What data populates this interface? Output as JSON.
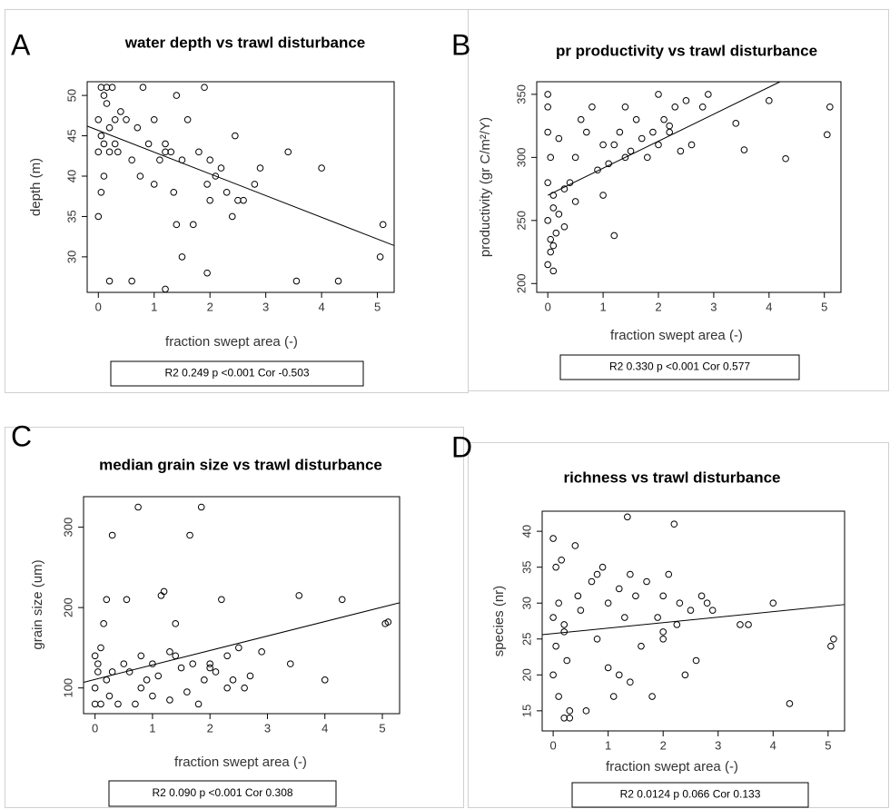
{
  "chart_data": [
    {
      "type": "scatter",
      "panel_label": "A",
      "title": "water depth vs trawl disturbance",
      "xlabel": "fraction swept area (-)",
      "ylabel": "depth (m)",
      "x": [
        0,
        0,
        0,
        0.05,
        0.05,
        0.1,
        0.1,
        0.1,
        0.15,
        0.2,
        0.2,
        0.25,
        0.3,
        0.35,
        0.4,
        0.5,
        0.6,
        0.7,
        0.75,
        0.8,
        0.9,
        1.0,
        1.0,
        1.1,
        1.2,
        1.2,
        1.3,
        1.35,
        1.4,
        1.4,
        1.5,
        1.5,
        1.6,
        1.7,
        1.8,
        1.9,
        1.95,
        2.0,
        2.0,
        2.1,
        2.2,
        2.3,
        2.4,
        2.45,
        2.5,
        2.6,
        2.8,
        2.9,
        3.4,
        4.0,
        5.05,
        5.1,
        0.2,
        0.6,
        1.2,
        1.95,
        3.55,
        4.3,
        0.05,
        0.15,
        0.3
      ],
      "y": [
        35,
        43,
        47,
        51,
        45,
        50,
        44,
        40,
        51,
        46,
        43,
        51,
        47,
        43,
        48,
        47,
        42,
        46,
        40,
        51,
        44,
        47,
        39,
        42,
        26,
        44,
        43,
        38,
        50,
        34,
        42,
        30,
        47,
        34,
        43,
        51,
        39,
        42,
        37,
        40,
        41,
        38,
        35,
        45,
        37,
        37,
        39,
        41,
        43,
        41,
        30,
        34,
        27,
        27,
        43,
        28,
        27,
        27,
        38,
        49,
        44
      ],
      "trend": {
        "x": [
          -0.2,
          5.3
        ],
        "y": [
          46.2,
          31.4
        ]
      },
      "xlim": [
        -0.2,
        5.3
      ],
      "ylim": [
        25.6,
        51.7
      ],
      "xticks": [
        0,
        1,
        2,
        3,
        4,
        5
      ],
      "yticks": [
        30,
        35,
        40,
        45,
        50
      ],
      "stats": "R2 0.249 p <0.001 Cor -0.503"
    },
    {
      "type": "scatter",
      "panel_label": "B",
      "title": "pr productivity vs trawl disturbance",
      "xlabel": "fraction swept area (-)",
      "ylabel": "productivity (gr C/m²/Y)",
      "x": [
        0,
        0,
        0,
        0,
        0,
        0,
        0.05,
        0.05,
        0.1,
        0.1,
        0.1,
        0.15,
        0.2,
        0.2,
        0.3,
        0.4,
        0.5,
        0.5,
        0.6,
        0.7,
        0.8,
        0.9,
        1.0,
        1.0,
        1.1,
        1.2,
        1.3,
        1.4,
        1.4,
        1.5,
        1.6,
        1.7,
        1.8,
        1.9,
        2.0,
        2.0,
        2.1,
        2.2,
        2.3,
        2.4,
        2.5,
        2.6,
        2.8,
        2.9,
        3.4,
        3.55,
        4.0,
        4.3,
        5.05,
        5.1,
        0.05,
        0.1,
        0.3,
        1.2,
        2.2
      ],
      "y": [
        350,
        340,
        320,
        280,
        250,
        215,
        235,
        300,
        230,
        270,
        210,
        240,
        255,
        315,
        275,
        280,
        300,
        265,
        330,
        320,
        340,
        290,
        310,
        270,
        295,
        310,
        320,
        340,
        300,
        305,
        330,
        315,
        300,
        320,
        350,
        310,
        330,
        320,
        340,
        305,
        345,
        310,
        340,
        350,
        327,
        306,
        345,
        299,
        318,
        340,
        225,
        260,
        245,
        238,
        325
      ],
      "trend": {
        "x": [
          0,
          4.2
        ],
        "y": [
          270,
          360
        ]
      },
      "xlim": [
        -0.2,
        5.3
      ],
      "ylim": [
        193,
        360
      ],
      "xticks": [
        0,
        1,
        2,
        3,
        4,
        5
      ],
      "yticks": [
        200,
        250,
        300,
        350
      ],
      "stats": "R2 0.330 p <0.001 Cor 0.577"
    },
    {
      "type": "scatter",
      "panel_label": "C",
      "title": "median grain size vs trawl disturbance",
      "xlabel": "fraction swept area (-)",
      "ylabel": "grain size (um)",
      "x": [
        0,
        0,
        0,
        0.05,
        0.05,
        0.1,
        0.1,
        0.15,
        0.2,
        0.2,
        0.25,
        0.3,
        0.4,
        0.5,
        0.55,
        0.6,
        0.7,
        0.75,
        0.8,
        0.9,
        1.0,
        1.0,
        1.1,
        1.15,
        1.2,
        1.3,
        1.4,
        1.4,
        1.5,
        1.6,
        1.65,
        1.7,
        1.8,
        1.85,
        1.9,
        2.0,
        2.1,
        2.2,
        2.3,
        2.4,
        2.5,
        2.6,
        2.7,
        2.9,
        3.4,
        3.55,
        4.0,
        4.3,
        5.05,
        5.1,
        0.3,
        0.8,
        1.3,
        2.0,
        2.3
      ],
      "y": [
        140,
        100,
        80,
        130,
        120,
        150,
        80,
        180,
        210,
        110,
        90,
        290,
        80,
        130,
        210,
        120,
        80,
        325,
        140,
        110,
        130,
        90,
        115,
        215,
        220,
        85,
        140,
        180,
        125,
        95,
        290,
        130,
        80,
        325,
        110,
        130,
        120,
        210,
        140,
        110,
        150,
        100,
        115,
        145,
        130,
        215,
        110,
        210,
        180,
        182,
        120,
        100,
        145,
        125,
        100
      ],
      "trend": {
        "x": [
          -0.2,
          5.3
        ],
        "y": [
          107,
          206
        ]
      },
      "xlim": [
        -0.2,
        5.3
      ],
      "ylim": [
        68,
        338
      ],
      "xticks": [
        0,
        1,
        2,
        3,
        4,
        5
      ],
      "yticks": [
        100,
        200,
        300
      ],
      "stats": "R2 0.090 p <0.001 Cor 0.308"
    },
    {
      "type": "scatter",
      "panel_label": "D",
      "title": "richness vs trawl disturbance",
      "xlabel": "fraction swept area (-)",
      "ylabel": "species (nr)",
      "x": [
        0,
        0,
        0,
        0.05,
        0.05,
        0.1,
        0.1,
        0.15,
        0.2,
        0.2,
        0.25,
        0.3,
        0.4,
        0.45,
        0.5,
        0.6,
        0.7,
        0.8,
        0.9,
        1.0,
        1.0,
        1.1,
        1.2,
        1.3,
        1.35,
        1.4,
        1.4,
        1.5,
        1.6,
        1.7,
        1.8,
        1.9,
        2.0,
        2.0,
        2.1,
        2.2,
        2.25,
        2.3,
        2.4,
        2.5,
        2.6,
        2.7,
        2.8,
        2.9,
        3.4,
        3.55,
        4.0,
        4.3,
        5.05,
        5.1,
        0.2,
        0.3,
        0.8,
        1.2,
        2.0
      ],
      "y": [
        39,
        28,
        20,
        35,
        24,
        30,
        17,
        36,
        27,
        14,
        22,
        14,
        38,
        31,
        29,
        15,
        33,
        25,
        35,
        21,
        30,
        17,
        32,
        28,
        42,
        19,
        34,
        31,
        24,
        33,
        17,
        28,
        31,
        25,
        34,
        41,
        27,
        30,
        20,
        29,
        22,
        31,
        30,
        29,
        27,
        27,
        30,
        16,
        24,
        25,
        26,
        15,
        34,
        20,
        26
      ],
      "trend": {
        "x": [
          -0.2,
          5.3
        ],
        "y": [
          25.6,
          29.8
        ]
      },
      "xlim": [
        -0.2,
        5.3
      ],
      "ylim": [
        12.2,
        42.8
      ],
      "xticks": [
        0,
        1,
        2,
        3,
        4,
        5
      ],
      "yticks": [
        15,
        20,
        25,
        30,
        35,
        40
      ],
      "stats": "R2 0.0124 p 0.066 Cor 0.133"
    }
  ]
}
